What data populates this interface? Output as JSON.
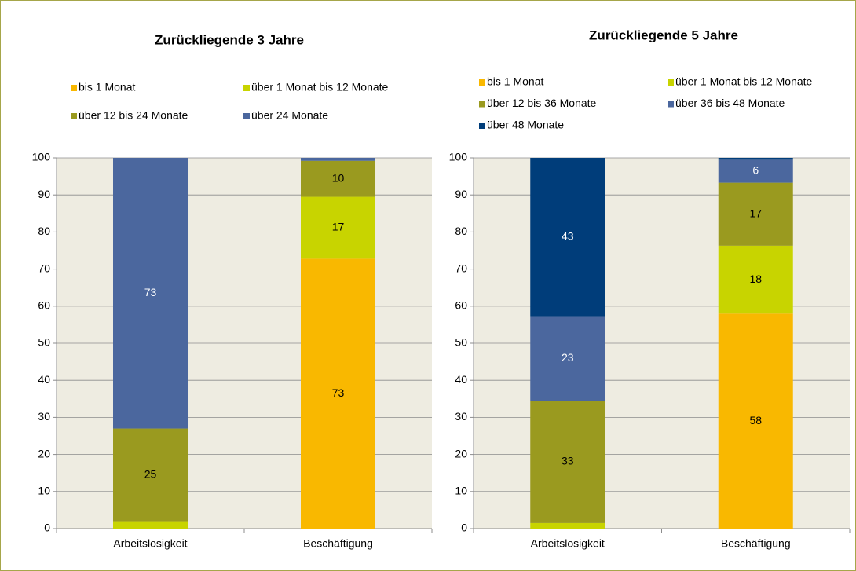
{
  "chart_data": [
    {
      "type": "stacked_bar",
      "title": "Zurückliegende 3 Jahre",
      "categories": [
        "Arbeitslosigkeit",
        "Beschäftigung"
      ],
      "ylim": [
        0,
        100
      ],
      "yticks": [
        0,
        10,
        20,
        30,
        40,
        50,
        60,
        70,
        80,
        90,
        100
      ],
      "grid": true,
      "series": [
        {
          "name": "bis 1 Monat",
          "color": "#f9b800",
          "values": [
            0,
            72.8
          ],
          "value_labels": [
            null,
            "73"
          ]
        },
        {
          "name": "über 1 Monat bis 12 Monate",
          "color": "#c8d400",
          "values": [
            2.0,
            16.7
          ],
          "value_labels": [
            null,
            "17"
          ]
        },
        {
          "name": "über 12 bis 24 Monate",
          "color": "#9a9a1f",
          "values": [
            25.0,
            9.7
          ],
          "value_labels": [
            "25",
            "10"
          ]
        },
        {
          "name": "über 24 Monate",
          "color": "#4b679e",
          "values": [
            73.0,
            0.8
          ],
          "value_labels": [
            "73",
            null
          ]
        }
      ]
    },
    {
      "type": "stacked_bar",
      "title": "Zurückliegende 5 Jahre",
      "categories": [
        "Arbeitslosigkeit",
        "Beschäftigung"
      ],
      "ylim": [
        0,
        100
      ],
      "yticks": [
        0,
        10,
        20,
        30,
        40,
        50,
        60,
        70,
        80,
        90,
        100
      ],
      "grid": true,
      "series": [
        {
          "name": "bis 1 Monat",
          "color": "#f9b800",
          "values": [
            0,
            58.0
          ],
          "value_labels": [
            null,
            "58"
          ]
        },
        {
          "name": "über 1 Monat bis 12 Monate",
          "color": "#c8d400",
          "values": [
            1.5,
            18.3
          ],
          "value_labels": [
            null,
            "18"
          ]
        },
        {
          "name": "über 12 bis 36 Monate",
          "color": "#9a9a1f",
          "values": [
            33.0,
            17.0
          ],
          "value_labels": [
            "33",
            "17"
          ]
        },
        {
          "name": "über 36 bis 48 Monate",
          "color": "#4b679e",
          "values": [
            22.8,
            6.2
          ],
          "value_labels": [
            "23",
            "6"
          ]
        },
        {
          "name": "über 48 Monate",
          "color": "#003d7a",
          "values": [
            42.7,
            0.5
          ],
          "value_labels": [
            "43",
            null
          ]
        }
      ]
    }
  ]
}
